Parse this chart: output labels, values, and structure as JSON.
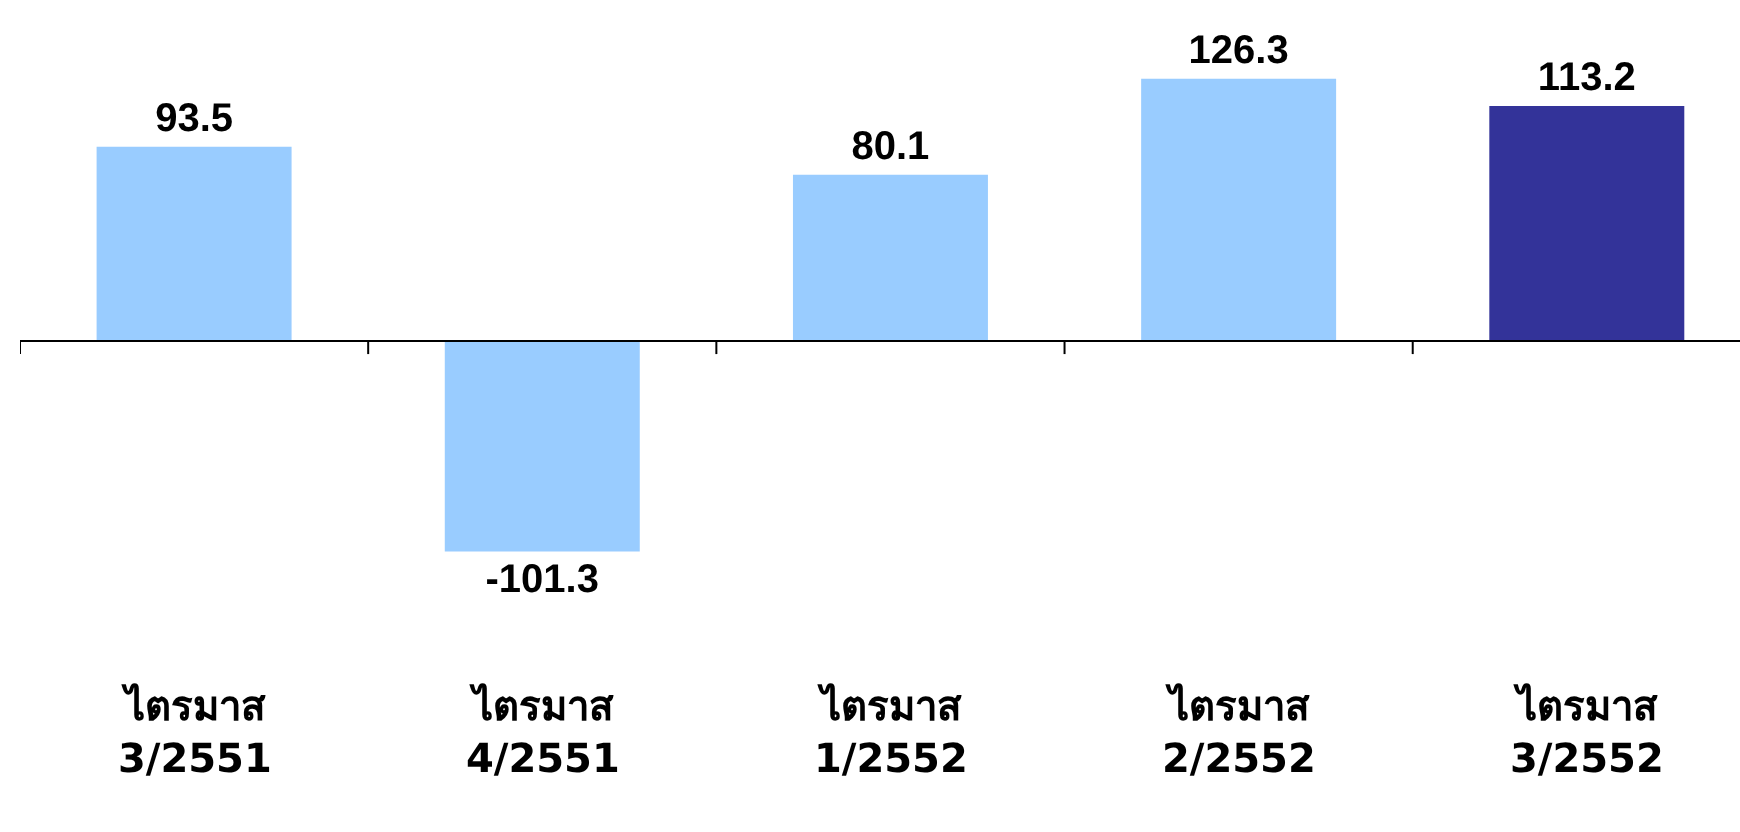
{
  "chart_data": {
    "type": "bar",
    "categories": [
      "ไตรมาส\n3/2551",
      "ไตรมาส\n4/2551",
      "ไตรมาส\n1/2552",
      "ไตรมาส\n2/2552",
      "ไตรมาส\n3/2552"
    ],
    "values": [
      93.5,
      -101.3,
      80.1,
      126.3,
      113.2
    ],
    "colors": [
      "#99ccff",
      "#99ccff",
      "#99ccff",
      "#99ccff",
      "#333399"
    ],
    "data_labels": true
  }
}
